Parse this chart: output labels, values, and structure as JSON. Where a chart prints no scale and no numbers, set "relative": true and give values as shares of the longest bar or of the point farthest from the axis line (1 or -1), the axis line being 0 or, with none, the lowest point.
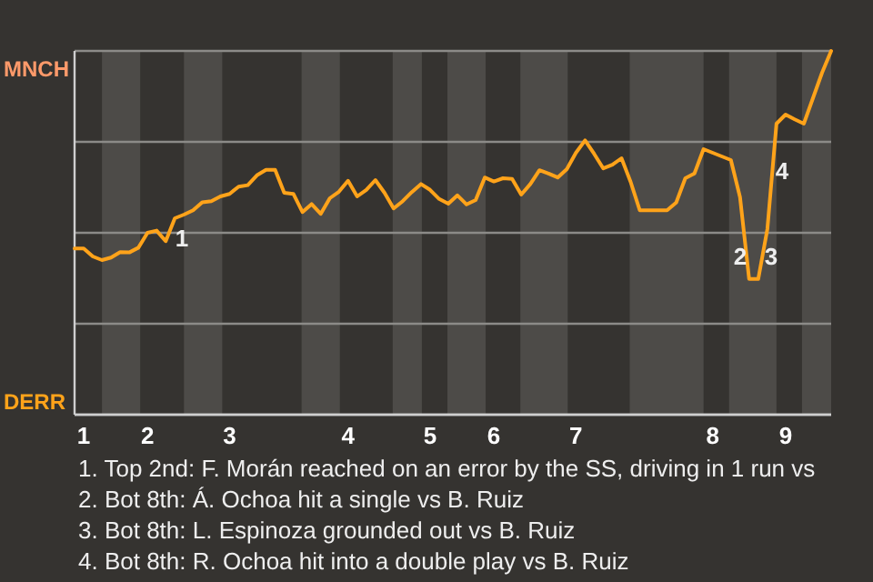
{
  "chart_data": {
    "type": "line",
    "relative": true,
    "categories": [
      null,
      "1",
      null,
      null,
      null,
      null,
      null,
      null,
      "2",
      null,
      null,
      null,
      null,
      null,
      null,
      null,
      null,
      "3",
      null,
      null,
      null,
      null,
      null,
      null,
      null,
      null,
      null,
      null,
      null,
      null,
      "4",
      null,
      null,
      null,
      null,
      null,
      null,
      null,
      null,
      "5",
      null,
      null,
      null,
      null,
      null,
      null,
      "6",
      null,
      null,
      null,
      null,
      null,
      null,
      null,
      null,
      "7",
      null,
      null,
      null,
      null,
      null,
      null,
      null,
      null,
      null,
      null,
      null,
      null,
      null,
      null,
      "8",
      null,
      null,
      null,
      null,
      null,
      null,
      null,
      "9",
      null,
      null,
      null,
      null,
      null
    ],
    "grid": "y",
    "series": [
      {
        "color": "#ffa31a",
        "values": [
          0.457,
          0.457,
          0.435,
          0.425,
          0.432,
          0.447,
          0.446,
          0.459,
          0.5,
          0.506,
          0.477,
          0.54,
          0.55,
          0.562,
          0.584,
          0.587,
          0.6,
          0.607,
          0.627,
          0.631,
          0.658,
          0.673,
          0.673,
          0.61,
          0.607,
          0.557,
          0.579,
          0.552,
          0.595,
          0.613,
          0.643,
          0.6,
          0.618,
          0.645,
          0.61,
          0.567,
          0.587,
          0.612,
          0.634,
          0.618,
          0.593,
          0.58,
          0.603,
          0.578,
          0.59,
          0.652,
          0.641,
          0.65,
          0.648,
          0.605,
          0.634,
          0.672,
          0.663,
          0.652,
          0.675,
          0.72,
          0.754,
          0.717,
          0.677,
          0.687,
          0.705,
          0.64,
          0.562,
          0.562,
          0.562,
          0.562,
          0.583,
          0.65,
          0.663,
          0.73,
          0.72,
          0.71,
          0.7,
          0.598,
          0.373,
          0.373,
          0.51,
          0.8,
          0.825,
          0.812,
          0.8,
          0.87,
          0.94,
          1
        ]
      }
    ],
    "annotations": [
      "MNCH",
      "DERR",
      "1",
      "2",
      "3",
      "4",
      "1. Top 2nd: F. Morán reached on an error by the SS, driving in 1 run vs",
      "2. Bot 8th: Á. Ochoa hit a single vs B. Ruiz",
      "3. Bot 8th: L. Espinoza grounded out vs B. Ruiz",
      "4. Bot 8th: R. Ochoa hit into a double play vs B. Ruiz"
    ]
  }
}
